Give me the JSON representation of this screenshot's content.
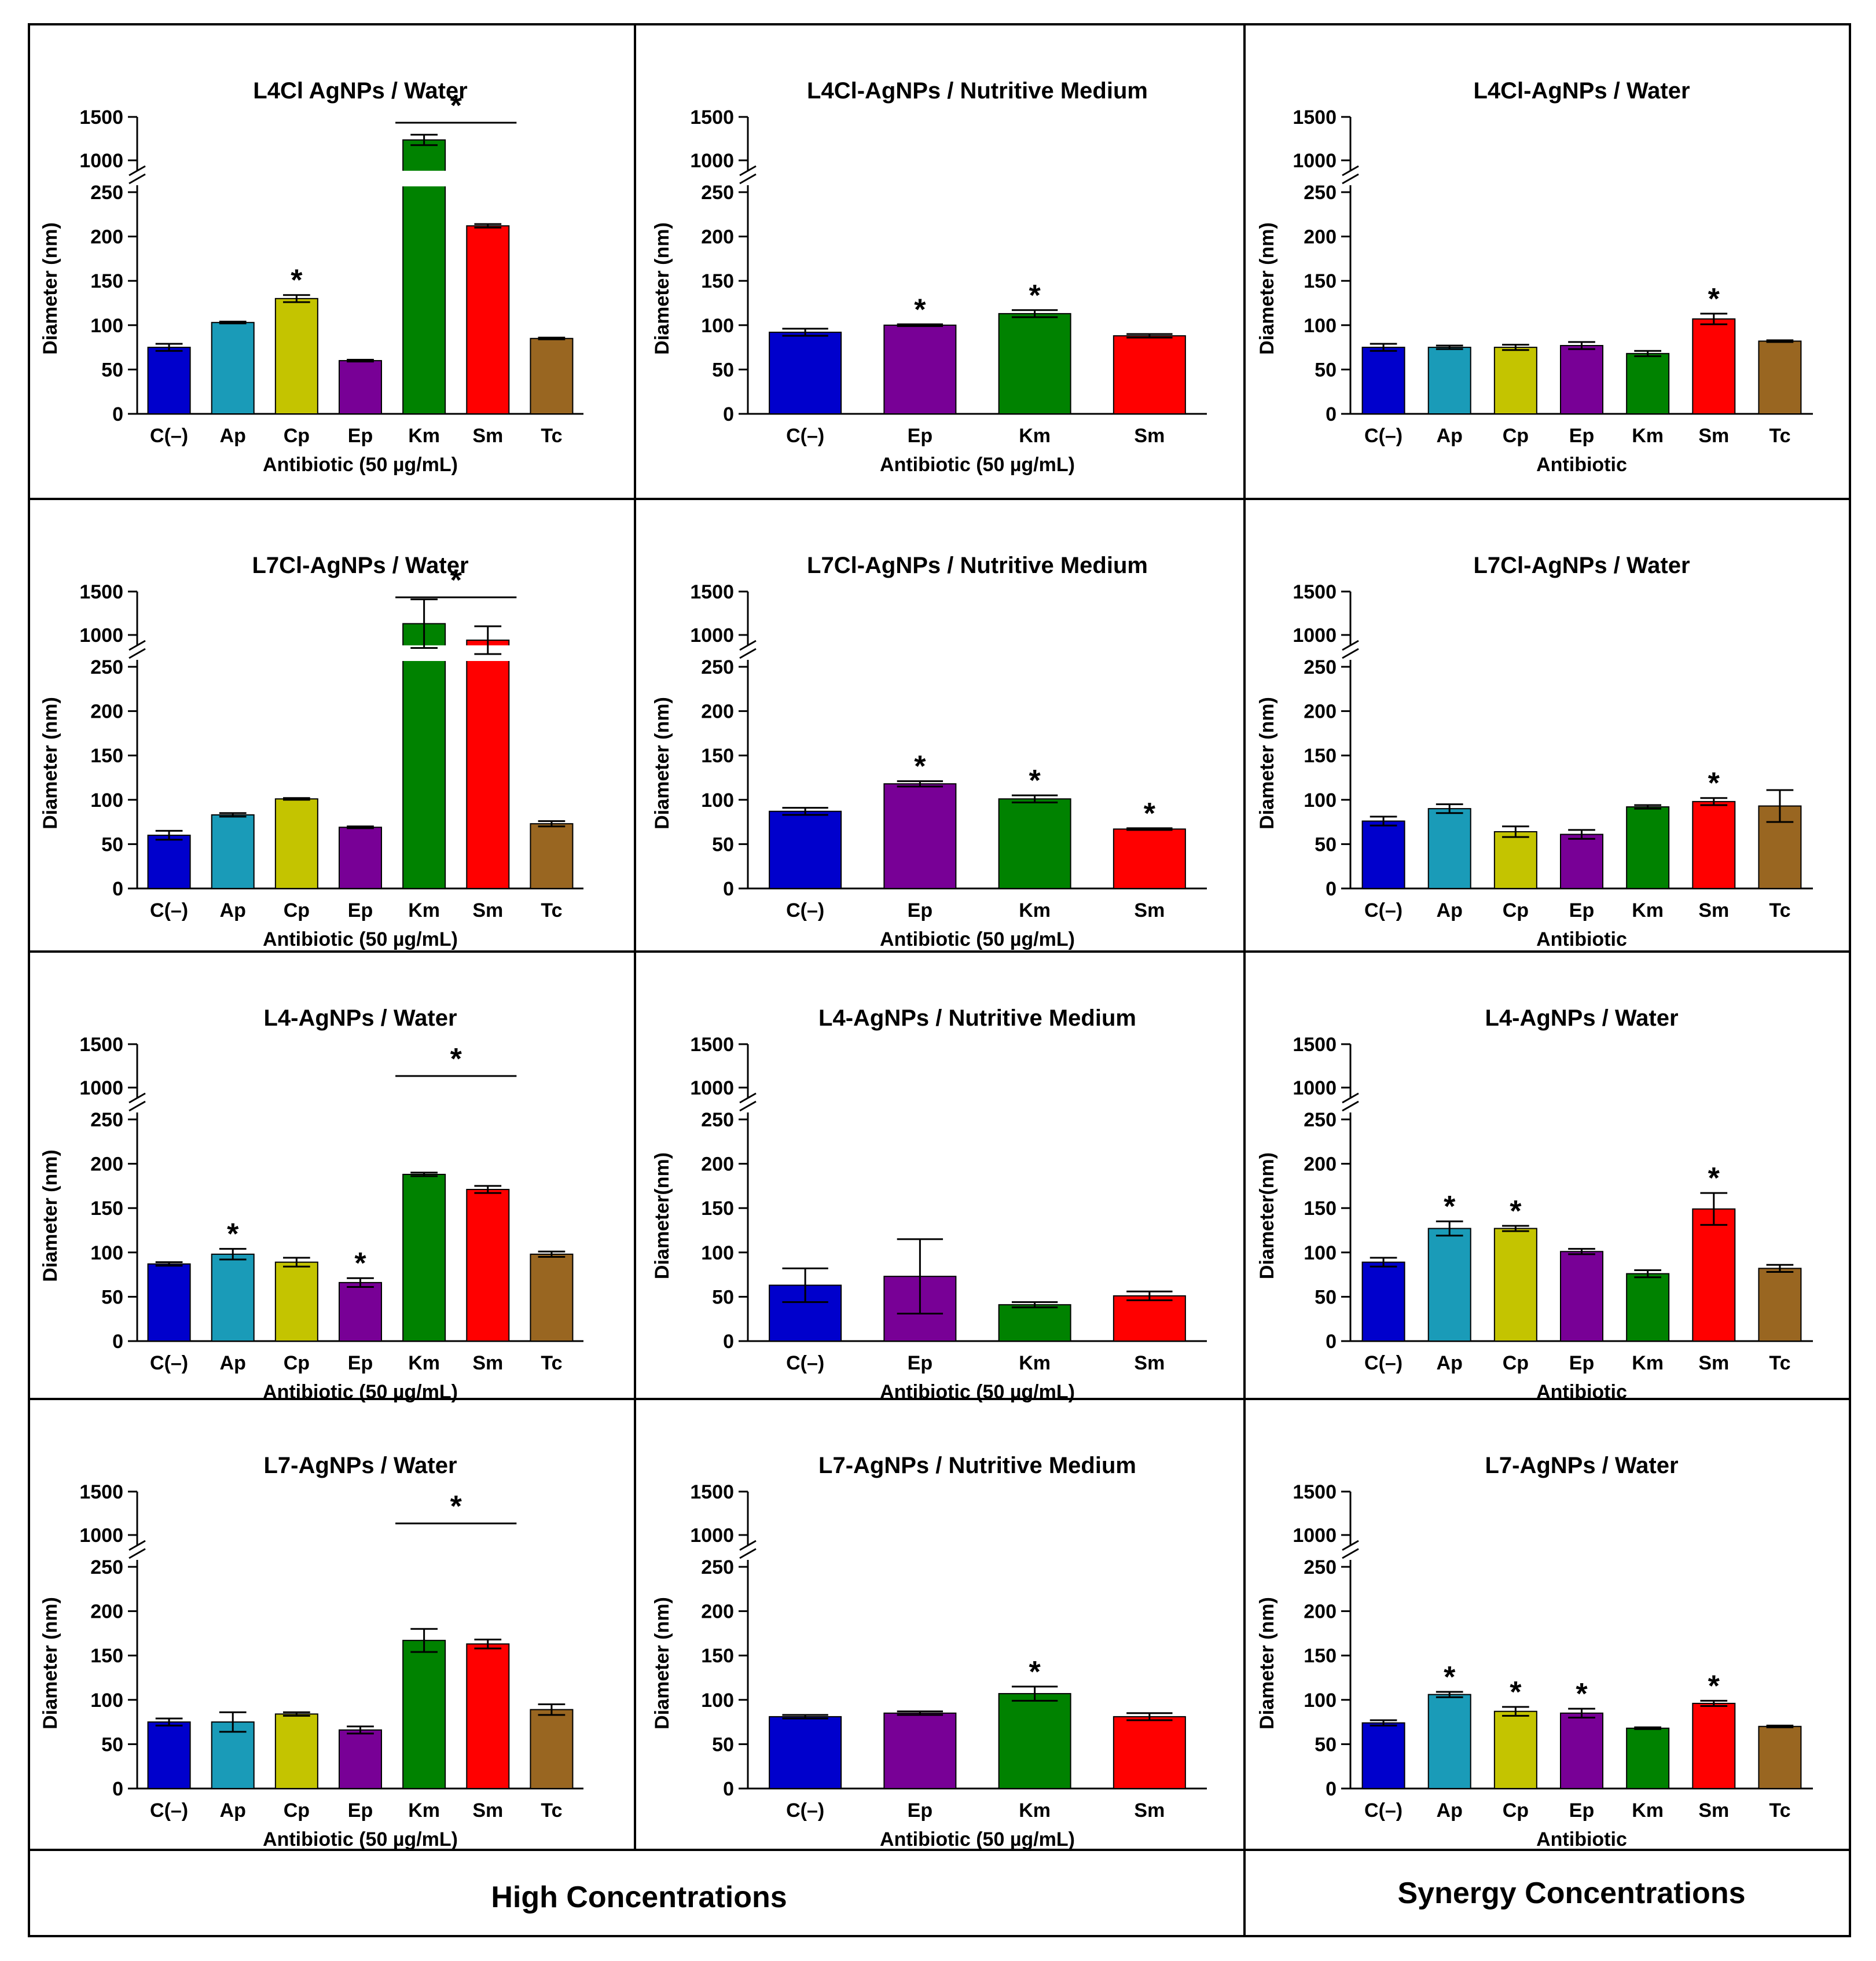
{
  "footer": {
    "high_label": "High Concentrations",
    "synergy_label": "Synergy Concentrations"
  },
  "axis": {
    "ylabel": "Diameter (nm)",
    "ylabel_nospace": "Diameter(nm)",
    "yticks_lower": [
      0,
      50,
      100,
      150,
      200,
      250
    ],
    "yticks_upper": [
      1000,
      1500
    ],
    "lower_range": [
      0,
      250
    ],
    "upper_range": [
      1000,
      1500
    ],
    "axis_break": true
  },
  "colors": {
    "C(–)": "#0000cc",
    "Ap": "#1a9bb8",
    "Cp": "#c4c400",
    "Ep": "#780096",
    "Km": "#008200",
    "Sm": "#ff0000",
    "Tc": "#996621"
  },
  "chart_data": [
    {
      "type": "bar",
      "title": "L4Cl AgNPs / Water",
      "xlabel": "Antibiotic (50 µg/mL)",
      "ylabel": "Diameter (nm)",
      "categories": [
        "C(–)",
        "Ap",
        "Cp",
        "Ep",
        "Km",
        "Sm",
        "Tc"
      ],
      "values": [
        75,
        103,
        130,
        60,
        1235,
        212,
        85
      ],
      "errors": [
        4,
        1,
        4,
        1,
        60,
        2,
        1
      ],
      "stars": [
        {
          "category": "Cp"
        }
      ],
      "brackets": [
        {
          "from": "Km",
          "to": "Sm"
        }
      ]
    },
    {
      "type": "bar",
      "title": "L4Cl-AgNPs / Nutritive Medium",
      "xlabel": "Antibiotic (50 µg/mL)",
      "ylabel": "Diameter (nm)",
      "categories": [
        "C(–)",
        "Ep",
        "Km",
        "Sm"
      ],
      "values": [
        92,
        100,
        113,
        88
      ],
      "errors": [
        4,
        1,
        4,
        2
      ],
      "stars": [
        {
          "category": "Ep"
        },
        {
          "category": "Km"
        }
      ],
      "brackets": []
    },
    {
      "type": "bar",
      "title": "L4Cl-AgNPs / Water",
      "xlabel": "Antibiotic",
      "ylabel": "Diameter (nm)",
      "categories": [
        "C(–)",
        "Ap",
        "Cp",
        "Ep",
        "Km",
        "Sm",
        "Tc"
      ],
      "values": [
        75,
        75,
        75,
        77,
        68,
        107,
        82
      ],
      "errors": [
        4,
        2,
        3,
        4,
        3,
        6,
        1
      ],
      "stars": [
        {
          "category": "Sm"
        }
      ],
      "brackets": []
    },
    {
      "type": "bar",
      "title": "L7Cl-AgNPs / Water",
      "xlabel": "Antibiotic (50 µg/mL)",
      "ylabel": "Diameter (nm)",
      "categories": [
        "C(–)",
        "Ap",
        "Cp",
        "Ep",
        "Km",
        "Sm",
        "Tc"
      ],
      "values": [
        60,
        83,
        101,
        69,
        1130,
        940,
        73
      ],
      "errors": [
        5,
        2,
        1,
        1,
        280,
        160,
        3
      ],
      "stars": [],
      "brackets": [
        {
          "from": "Km",
          "to": "Sm"
        }
      ]
    },
    {
      "type": "bar",
      "title": "L7Cl-AgNPs / Nutritive Medium",
      "xlabel": "Antibiotic (50 µg/mL)",
      "ylabel": "Diameter (nm)",
      "categories": [
        "C(–)",
        "Ep",
        "Km",
        "Sm"
      ],
      "values": [
        87,
        118,
        101,
        67
      ],
      "errors": [
        4,
        3,
        4,
        1
      ],
      "stars": [
        {
          "category": "Ep"
        },
        {
          "category": "Km"
        },
        {
          "category": "Sm"
        }
      ],
      "brackets": []
    },
    {
      "type": "bar",
      "title": "L7Cl-AgNPs / Water",
      "xlabel": "Antibiotic",
      "ylabel": "Diameter (nm)",
      "categories": [
        "C(–)",
        "Ap",
        "Cp",
        "Ep",
        "Km",
        "Sm",
        "Tc"
      ],
      "values": [
        76,
        90,
        64,
        61,
        92,
        98,
        93
      ],
      "errors": [
        5,
        5,
        6,
        5,
        2,
        4,
        18
      ],
      "stars": [
        {
          "category": "Sm"
        }
      ],
      "brackets": []
    },
    {
      "type": "bar",
      "title": "L4-AgNPs / Water",
      "xlabel": "Antibiotic (50 µg/mL)",
      "ylabel": "Diameter (nm)",
      "categories": [
        "C(–)",
        "Ap",
        "Cp",
        "Ep",
        "Km",
        "Sm",
        "Tc"
      ],
      "values": [
        87,
        98,
        89,
        66,
        188,
        171,
        98
      ],
      "errors": [
        2,
        6,
        5,
        5,
        2,
        4,
        3
      ],
      "stars": [
        {
          "category": "Ap"
        },
        {
          "category": "Ep"
        }
      ],
      "brackets": [
        {
          "from": "Km",
          "to": "Sm"
        }
      ]
    },
    {
      "type": "bar",
      "title": "L4-AgNPs / Nutritive Medium",
      "xlabel": "Antibiotic (50 µg/mL)",
      "ylabel": "Diameter(nm)",
      "categories": [
        "C(–)",
        "Ep",
        "Km",
        "Sm"
      ],
      "values": [
        63,
        73,
        41,
        51
      ],
      "errors": [
        19,
        42,
        3,
        5
      ],
      "stars": [],
      "brackets": []
    },
    {
      "type": "bar",
      "title": "L4-AgNPs / Water",
      "xlabel": "Antibiotic",
      "ylabel": "Diameter(nm)",
      "categories": [
        "C(–)",
        "Ap",
        "Cp",
        "Ep",
        "Km",
        "Sm",
        "Tc"
      ],
      "values": [
        89,
        127,
        127,
        101,
        76,
        149,
        82
      ],
      "errors": [
        5,
        8,
        3,
        3,
        4,
        18,
        4
      ],
      "stars": [
        {
          "category": "Ap"
        },
        {
          "category": "Cp"
        },
        {
          "category": "Sm"
        }
      ],
      "brackets": []
    },
    {
      "type": "bar",
      "title": "L7-AgNPs / Water",
      "xlabel": "Antibiotic (50 µg/mL)",
      "ylabel": "Diameter (nm)",
      "categories": [
        "C(–)",
        "Ap",
        "Cp",
        "Ep",
        "Km",
        "Sm",
        "Tc"
      ],
      "values": [
        75,
        75,
        84,
        66,
        167,
        163,
        89
      ],
      "errors": [
        4,
        11,
        2,
        4,
        13,
        5,
        6
      ],
      "stars": [],
      "brackets": [
        {
          "from": "Km",
          "to": "Sm"
        }
      ]
    },
    {
      "type": "bar",
      "title": "L7-AgNPs / Nutritive Medium",
      "xlabel": "Antibiotic (50 µg/mL)",
      "ylabel": "Diameter (nm)",
      "categories": [
        "C(–)",
        "Ep",
        "Km",
        "Sm"
      ],
      "values": [
        81,
        85,
        107,
        81
      ],
      "errors": [
        2,
        2,
        8,
        4
      ],
      "stars": [
        {
          "category": "Km"
        }
      ],
      "brackets": []
    },
    {
      "type": "bar",
      "title": "L7-AgNPs / Water",
      "xlabel": "Antibiotic",
      "ylabel": "Diameter (nm)",
      "categories": [
        "C(–)",
        "Ap",
        "Cp",
        "Ep",
        "Km",
        "Sm",
        "Tc"
      ],
      "values": [
        74,
        106,
        87,
        85,
        68,
        96,
        70
      ],
      "errors": [
        3,
        3,
        5,
        5,
        1,
        3,
        1
      ],
      "stars": [
        {
          "category": "Ap"
        },
        {
          "category": "Cp"
        },
        {
          "category": "Ep"
        },
        {
          "category": "Sm"
        }
      ],
      "brackets": []
    }
  ]
}
